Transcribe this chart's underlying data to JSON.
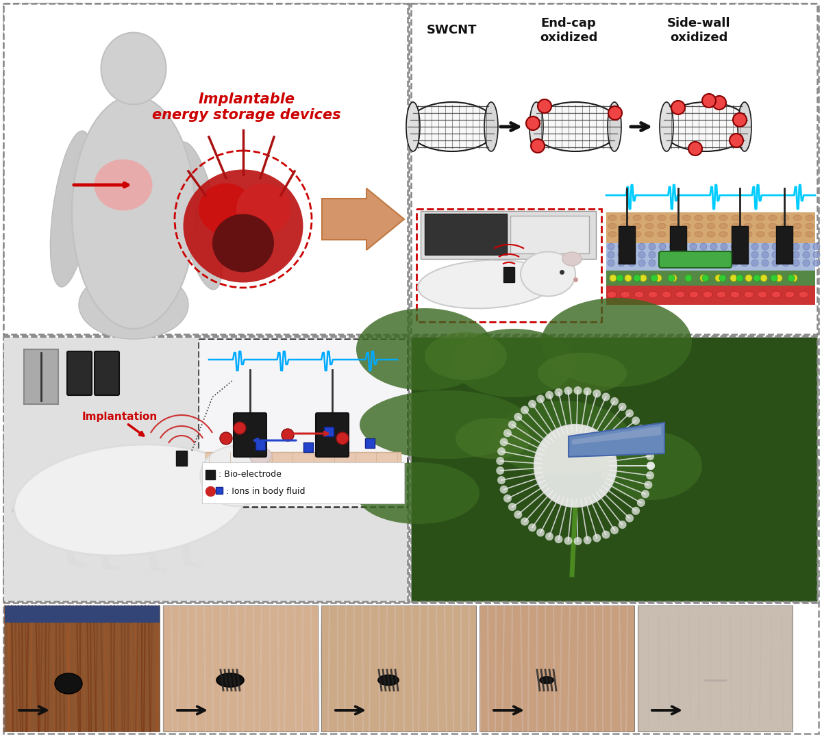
{
  "figure_bg": "#ffffff",
  "outer_border": {
    "color": "#888888",
    "lw": 2.0
  },
  "panel_dividers": {
    "color": "#888888",
    "lw": 1.8,
    "ls": "--"
  },
  "top_left": {
    "implantable_text": "Implantable\nenergy storage devices",
    "text_color": "#cc0000",
    "body_color": "#c8c8c8",
    "body_edge": "#b0b0b0",
    "chest_glow": "#ff9999",
    "arrow_red": "#cc0000",
    "heart_circle_color": "#cc0000",
    "heart_fill": "#aa1515",
    "aorta_color": "#cc2222",
    "big_arrow_fill": "#d4956a",
    "big_arrow_edge": "#c07840"
  },
  "top_right": {
    "bg": "#ffffff",
    "cnt_color": "#1a1a1a",
    "dot_fill": "#ee4444",
    "dot_edge": "#880000",
    "arrow_color": "#111111",
    "label_swcnt": "SWCNT",
    "label_endcap": "End-cap\noxidized",
    "label_sidewall": "Side-wall\noxidized",
    "device_bg": "#555555",
    "device_white": "#e8e8e8",
    "red_box_color": "#cc0000",
    "mouse_body": "#e8e8e8",
    "mouse_edge": "#bbbbbb",
    "signal_color": "#cc0000",
    "ecg_color": "#00ccff",
    "skin_tan": "#d4a870",
    "skin_peach": "#e8c890",
    "skin_tan2": "#c89060",
    "skin_blue": "#88aadd",
    "skin_green": "#558844",
    "skin_red": "#cc3333",
    "electrode_color": "#222222",
    "capsule_color": "#44aa44"
  },
  "bottom_left": {
    "bg": "#f0f0f0",
    "rat_body": "#dddddd",
    "rat_edge": "#bbbbbb",
    "implantation_text": "Implantation",
    "implantation_color": "#cc0000",
    "device_colors": [
      "#888888",
      "#333333",
      "#2a2a2a"
    ],
    "schema_bg": "#f0f0ff",
    "schema_border": "#555555",
    "surface_color": "#e8c8b8",
    "electrode_color": "#1a1a1a",
    "ecg_color": "#00aaff",
    "red_arrow": "#cc2222",
    "blue_arrow": "#2244cc",
    "dot_red": "#cc2222",
    "dot_blue": "#2255cc",
    "legend_bg": "#ffffff",
    "bio_label": ": Bio-electrode",
    "ions_label": ": Ions in body fluid"
  },
  "bottom_right": {
    "bg": "#2a5018",
    "dandelion_white": "#f8f8f8",
    "stem_green": "#3a8822",
    "tape_blue": "#5577bb",
    "tape_edge": "#3355aa"
  },
  "bottom_strip": {
    "photo_bgs": [
      "#8b5530",
      "#d4b090",
      "#ccaa88",
      "#c8a080",
      "#c8bdb0"
    ],
    "arrow_color": "#111111",
    "num": 5
  }
}
